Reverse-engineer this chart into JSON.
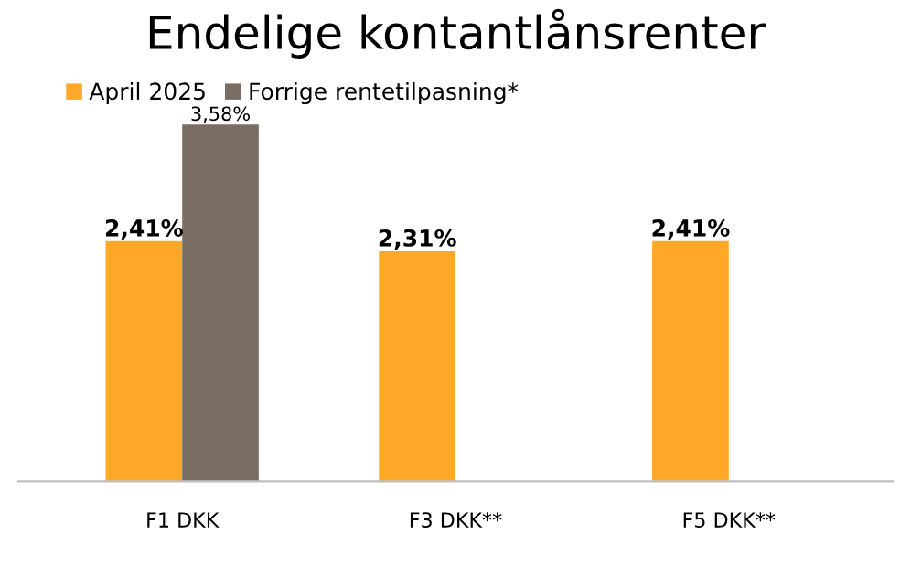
{
  "chart_data": {
    "type": "bar",
    "title": "Endelige kontantlånsrenter",
    "categories": [
      "F1 DKK",
      "F3 DKK**",
      "F5 DKK**"
    ],
    "series": [
      {
        "name": "April 2025",
        "color": "#ffa726",
        "values": [
          2.41,
          2.31,
          2.41
        ],
        "value_labels": [
          "2,41%",
          "2,31%",
          "2,41%"
        ]
      },
      {
        "name": "Forrige rentetilpasning*",
        "color": "#7a6e62",
        "values": [
          3.58,
          null,
          null
        ],
        "value_labels": [
          "3,58%",
          null,
          null
        ]
      }
    ],
    "legend": "top left",
    "grid": false
  }
}
